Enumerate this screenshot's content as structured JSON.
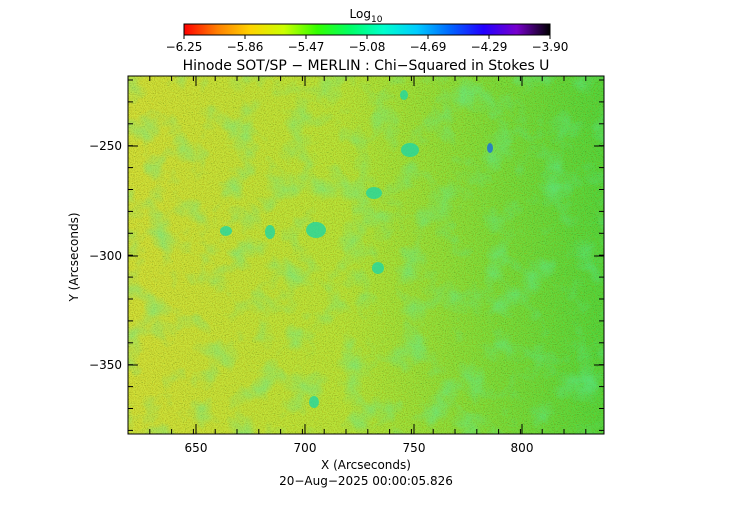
{
  "colorbar": {
    "label_main": "Log",
    "label_sub": "10",
    "ticks": [
      "−6.25",
      "−5.86",
      "−5.47",
      "−5.08",
      "−4.69",
      "−4.29",
      "−3.90"
    ],
    "colors": [
      "#ff0000",
      "#ff7f00",
      "#ffd400",
      "#ccff00",
      "#33ff00",
      "#00ff66",
      "#00ffcc",
      "#00ccff",
      "#0066ff",
      "#2200ff",
      "#7700cc",
      "#000000"
    ]
  },
  "plot": {
    "title": "Hinode SOT/SP − MERLIN : Chi−Squared in Stokes U",
    "xlabel": "X (Arcseconds)",
    "ylabel": "Y (Arcseconds)",
    "xticks": [
      "650",
      "700",
      "750",
      "800"
    ],
    "yticks": [
      "−250",
      "−300",
      "−350"
    ],
    "timestamp": "20−Aug−2025 00:00:05.826"
  }
}
